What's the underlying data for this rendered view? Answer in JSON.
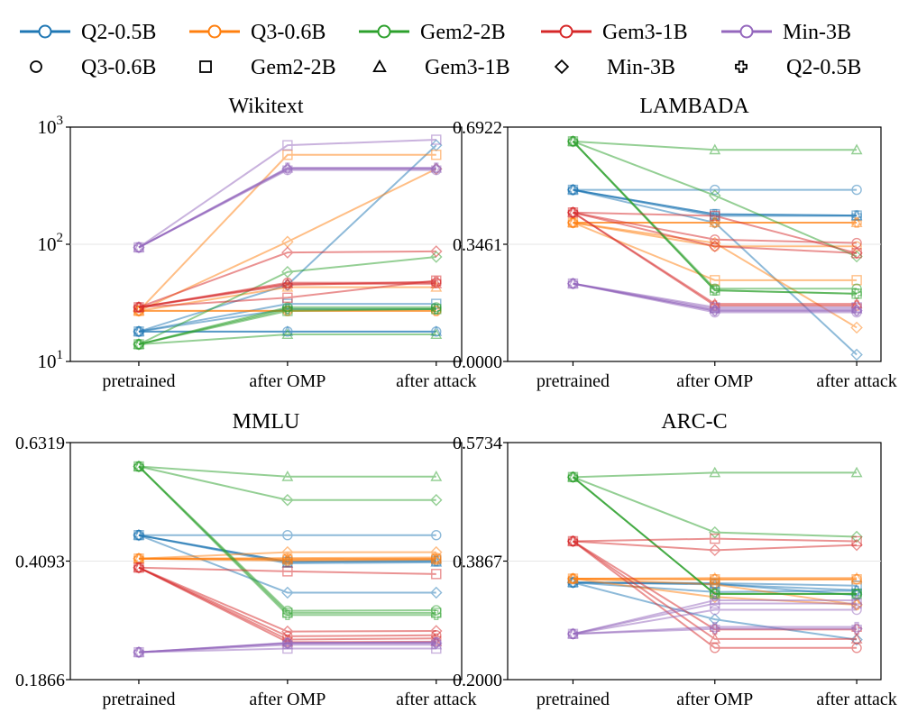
{
  "legend": {
    "models": [
      {
        "label": "Q2-0.5B",
        "color": "#1f77b4",
        "marker": "circle"
      },
      {
        "label": "Q3-0.6B",
        "color": "#ff7f0e",
        "marker": "circle"
      },
      {
        "label": "Gem2-2B",
        "color": "#2ca02c",
        "marker": "circle"
      },
      {
        "label": "Gem3-1B",
        "color": "#d62728",
        "marker": "circle"
      },
      {
        "label": "Min-3B",
        "color": "#9467bd",
        "marker": "circle"
      }
    ],
    "markers": [
      {
        "label": "Q3-0.6B",
        "marker": "circle"
      },
      {
        "label": "Gem2-2B",
        "marker": "square"
      },
      {
        "label": "Gem3-1B",
        "marker": "triangle"
      },
      {
        "label": "Min-3B",
        "marker": "diamond"
      },
      {
        "label": "Q2-0.5B",
        "marker": "plus"
      }
    ]
  },
  "chart_data": [
    {
      "type": "line",
      "title": "Wikitext",
      "categories": [
        "pretrained",
        "after OMP",
        "after attack"
      ],
      "yscale": "log",
      "ylim": [
        10,
        1000
      ],
      "yticks": [
        "10^1",
        "10^2",
        "10^3"
      ],
      "series": [
        {
          "model": "Q2-0.5B",
          "marker": "circle",
          "values": [
            18,
            18,
            18
          ]
        },
        {
          "model": "Q2-0.5B",
          "marker": "square",
          "values": [
            18,
            31,
            31
          ]
        },
        {
          "model": "Q2-0.5B",
          "marker": "triangle",
          "values": [
            18,
            18,
            18
          ]
        },
        {
          "model": "Q2-0.5B",
          "marker": "diamond",
          "values": [
            18,
            45,
            700
          ]
        },
        {
          "model": "Q2-0.5B",
          "marker": "plus",
          "values": [
            18,
            28,
            28
          ]
        },
        {
          "model": "Q3-0.6B",
          "marker": "circle",
          "values": [
            27,
            27,
            27
          ]
        },
        {
          "model": "Q3-0.6B",
          "marker": "square",
          "values": [
            27,
            580,
            580
          ]
        },
        {
          "model": "Q3-0.6B",
          "marker": "triangle",
          "values": [
            27,
            43,
            43
          ]
        },
        {
          "model": "Q3-0.6B",
          "marker": "diamond",
          "values": [
            27,
            105,
            440
          ]
        },
        {
          "model": "Q3-0.6B",
          "marker": "plus",
          "values": [
            27,
            27,
            27
          ]
        },
        {
          "model": "Gem2-2B",
          "marker": "circle",
          "values": [
            14,
            29,
            29
          ]
        },
        {
          "model": "Gem2-2B",
          "marker": "square",
          "values": [
            14,
            27,
            28
          ]
        },
        {
          "model": "Gem2-2B",
          "marker": "triangle",
          "values": [
            14,
            17,
            17
          ]
        },
        {
          "model": "Gem2-2B",
          "marker": "diamond",
          "values": [
            14,
            58,
            78
          ]
        },
        {
          "model": "Gem2-2B",
          "marker": "plus",
          "values": [
            14,
            28,
            28
          ]
        },
        {
          "model": "Gem3-1B",
          "marker": "circle",
          "values": [
            29,
            47,
            47
          ]
        },
        {
          "model": "Gem3-1B",
          "marker": "square",
          "values": [
            29,
            35,
            49
          ]
        },
        {
          "model": "Gem3-1B",
          "marker": "triangle",
          "values": [
            29,
            46,
            46
          ]
        },
        {
          "model": "Gem3-1B",
          "marker": "diamond",
          "values": [
            29,
            85,
            87
          ]
        },
        {
          "model": "Gem3-1B",
          "marker": "plus",
          "values": [
            29,
            45,
            48
          ]
        },
        {
          "model": "Min-3B",
          "marker": "circle",
          "values": [
            94,
            430,
            430
          ]
        },
        {
          "model": "Min-3B",
          "marker": "square",
          "values": [
            94,
            700,
            780
          ]
        },
        {
          "model": "Min-3B",
          "marker": "triangle",
          "values": [
            94,
            445,
            445
          ]
        },
        {
          "model": "Min-3B",
          "marker": "diamond",
          "values": [
            94,
            440,
            440
          ]
        },
        {
          "model": "Min-3B",
          "marker": "plus",
          "values": [
            94,
            450,
            450
          ]
        }
      ]
    },
    {
      "type": "line",
      "title": "LAMBADA",
      "categories": [
        "pretrained",
        "after OMP",
        "after attack"
      ],
      "yscale": "linear",
      "ylim": [
        0.0,
        0.6922
      ],
      "yticks": [
        "0.0000",
        "0.3461",
        "0.6922"
      ],
      "series": [
        {
          "model": "Q2-0.5B",
          "marker": "circle",
          "values": [
            0.507,
            0.507,
            0.507
          ]
        },
        {
          "model": "Q2-0.5B",
          "marker": "square",
          "values": [
            0.507,
            0.435,
            0.431
          ]
        },
        {
          "model": "Q2-0.5B",
          "marker": "triangle",
          "values": [
            0.507,
            0.43,
            0.43
          ]
        },
        {
          "model": "Q2-0.5B",
          "marker": "diamond",
          "values": [
            0.507,
            0.41,
            0.02
          ]
        },
        {
          "model": "Q2-0.5B",
          "marker": "plus",
          "values": [
            0.507,
            0.435,
            0.431
          ]
        },
        {
          "model": "Q3-0.6B",
          "marker": "circle",
          "values": [
            0.41,
            0.34,
            0.34
          ]
        },
        {
          "model": "Q3-0.6B",
          "marker": "square",
          "values": [
            0.41,
            0.24,
            0.24
          ]
        },
        {
          "model": "Q3-0.6B",
          "marker": "triangle",
          "values": [
            0.41,
            0.41,
            0.41
          ]
        },
        {
          "model": "Q3-0.6B",
          "marker": "diamond",
          "values": [
            0.41,
            0.35,
            0.1
          ]
        },
        {
          "model": "Q3-0.6B",
          "marker": "plus",
          "values": [
            0.41,
            0.41,
            0.41
          ]
        },
        {
          "model": "Gem2-2B",
          "marker": "circle",
          "values": [
            0.65,
            0.215,
            0.215
          ]
        },
        {
          "model": "Gem2-2B",
          "marker": "square",
          "values": [
            0.65,
            0.21,
            0.2
          ]
        },
        {
          "model": "Gem2-2B",
          "marker": "triangle",
          "values": [
            0.65,
            0.625,
            0.625
          ]
        },
        {
          "model": "Gem2-2B",
          "marker": "diamond",
          "values": [
            0.65,
            0.49,
            0.31
          ]
        },
        {
          "model": "Gem2-2B",
          "marker": "plus",
          "values": [
            0.65,
            0.21,
            0.2
          ]
        },
        {
          "model": "Gem3-1B",
          "marker": "circle",
          "values": [
            0.44,
            0.36,
            0.35
          ]
        },
        {
          "model": "Gem3-1B",
          "marker": "square",
          "values": [
            0.44,
            0.43,
            0.32
          ]
        },
        {
          "model": "Gem3-1B",
          "marker": "triangle",
          "values": [
            0.44,
            0.17,
            0.17
          ]
        },
        {
          "model": "Gem3-1B",
          "marker": "diamond",
          "values": [
            0.44,
            0.34,
            0.32
          ]
        },
        {
          "model": "Gem3-1B",
          "marker": "plus",
          "values": [
            0.44,
            0.165,
            0.165
          ]
        },
        {
          "model": "Min-3B",
          "marker": "circle",
          "values": [
            0.23,
            0.145,
            0.145
          ]
        },
        {
          "model": "Min-3B",
          "marker": "square",
          "values": [
            0.23,
            0.16,
            0.16
          ]
        },
        {
          "model": "Min-3B",
          "marker": "triangle",
          "values": [
            0.23,
            0.155,
            0.155
          ]
        },
        {
          "model": "Min-3B",
          "marker": "diamond",
          "values": [
            0.23,
            0.15,
            0.15
          ]
        },
        {
          "model": "Min-3B",
          "marker": "plus",
          "values": [
            0.23,
            0.15,
            0.15
          ]
        }
      ]
    },
    {
      "type": "line",
      "title": "MMLU",
      "categories": [
        "pretrained",
        "after OMP",
        "after attack"
      ],
      "yscale": "linear",
      "ylim": [
        0.1866,
        0.6319
      ],
      "yticks": [
        "0.1866",
        "0.4093",
        "0.6319"
      ],
      "series": [
        {
          "model": "Q2-0.5B",
          "marker": "circle",
          "values": [
            0.458,
            0.458,
            0.458
          ]
        },
        {
          "model": "Q2-0.5B",
          "marker": "square",
          "values": [
            0.458,
            0.408,
            0.41
          ]
        },
        {
          "model": "Q2-0.5B",
          "marker": "triangle",
          "values": [
            0.458,
            0.405,
            0.407
          ]
        },
        {
          "model": "Q2-0.5B",
          "marker": "diamond",
          "values": [
            0.458,
            0.35,
            0.35
          ]
        },
        {
          "model": "Q2-0.5B",
          "marker": "plus",
          "values": [
            0.458,
            0.408,
            0.409
          ]
        },
        {
          "model": "Q3-0.6B",
          "marker": "circle",
          "values": [
            0.414,
            0.415,
            0.416
          ]
        },
        {
          "model": "Q3-0.6B",
          "marker": "square",
          "values": [
            0.414,
            0.412,
            0.413
          ]
        },
        {
          "model": "Q3-0.6B",
          "marker": "triangle",
          "values": [
            0.414,
            0.413,
            0.414
          ]
        },
        {
          "model": "Q3-0.6B",
          "marker": "diamond",
          "values": [
            0.414,
            0.426,
            0.426
          ]
        },
        {
          "model": "Q3-0.6B",
          "marker": "plus",
          "values": [
            0.414,
            0.41,
            0.412
          ]
        },
        {
          "model": "Gem2-2B",
          "marker": "circle",
          "values": [
            0.587,
            0.316,
            0.317
          ]
        },
        {
          "model": "Gem2-2B",
          "marker": "square",
          "values": [
            0.587,
            0.312,
            0.312
          ]
        },
        {
          "model": "Gem2-2B",
          "marker": "triangle",
          "values": [
            0.587,
            0.568,
            0.568
          ]
        },
        {
          "model": "Gem2-2B",
          "marker": "diamond",
          "values": [
            0.587,
            0.524,
            0.524
          ]
        },
        {
          "model": "Gem2-2B",
          "marker": "plus",
          "values": [
            0.587,
            0.308,
            0.308
          ]
        },
        {
          "model": "Gem3-1B",
          "marker": "circle",
          "values": [
            0.397,
            0.268,
            0.27
          ]
        },
        {
          "model": "Gem3-1B",
          "marker": "square",
          "values": [
            0.397,
            0.39,
            0.385
          ]
        },
        {
          "model": "Gem3-1B",
          "marker": "triangle",
          "values": [
            0.397,
            0.257,
            0.258
          ]
        },
        {
          "model": "Gem3-1B",
          "marker": "diamond",
          "values": [
            0.397,
            0.277,
            0.278
          ]
        },
        {
          "model": "Gem3-1B",
          "marker": "plus",
          "values": [
            0.397,
            0.262,
            0.264
          ]
        },
        {
          "model": "Min-3B",
          "marker": "circle",
          "values": [
            0.238,
            0.255,
            0.257
          ]
        },
        {
          "model": "Min-3B",
          "marker": "square",
          "values": [
            0.238,
            0.245,
            0.245
          ]
        },
        {
          "model": "Min-3B",
          "marker": "triangle",
          "values": [
            0.238,
            0.252,
            0.252
          ]
        },
        {
          "model": "Min-3B",
          "marker": "diamond",
          "values": [
            0.238,
            0.255,
            0.255
          ]
        },
        {
          "model": "Min-3B",
          "marker": "plus",
          "values": [
            0.238,
            0.256,
            0.256
          ]
        }
      ]
    },
    {
      "type": "line",
      "title": "ARC-C",
      "categories": [
        "pretrained",
        "after OMP",
        "after attack"
      ],
      "yscale": "linear",
      "ylim": [
        0.2,
        0.5734
      ],
      "yticks": [
        "0.2000",
        "0.3867",
        "0.5734"
      ],
      "series": [
        {
          "model": "Q2-0.5B",
          "marker": "circle",
          "values": [
            0.353,
            0.351,
            0.333
          ]
        },
        {
          "model": "Q2-0.5B",
          "marker": "square",
          "values": [
            0.353,
            0.352,
            0.348
          ]
        },
        {
          "model": "Q2-0.5B",
          "marker": "triangle",
          "values": [
            0.353,
            0.35,
            0.341
          ]
        },
        {
          "model": "Q2-0.5B",
          "marker": "diamond",
          "values": [
            0.353,
            0.295,
            0.263
          ]
        },
        {
          "model": "Q2-0.5B",
          "marker": "plus",
          "values": [
            0.353,
            0.338,
            0.34
          ]
        },
        {
          "model": "Q3-0.6B",
          "marker": "circle",
          "values": [
            0.359,
            0.358,
            0.358
          ]
        },
        {
          "model": "Q3-0.6B",
          "marker": "square",
          "values": [
            0.359,
            0.358,
            0.358
          ]
        },
        {
          "model": "Q3-0.6B",
          "marker": "triangle",
          "values": [
            0.359,
            0.36,
            0.36
          ]
        },
        {
          "model": "Q3-0.6B",
          "marker": "diamond",
          "values": [
            0.359,
            0.33,
            0.318
          ]
        },
        {
          "model": "Q3-0.6B",
          "marker": "plus",
          "values": [
            0.359,
            0.35,
            0.318
          ]
        },
        {
          "model": "Gem2-2B",
          "marker": "circle",
          "values": [
            0.519,
            0.335,
            0.335
          ]
        },
        {
          "model": "Gem2-2B",
          "marker": "square",
          "values": [
            0.519,
            0.335,
            0.335
          ]
        },
        {
          "model": "Gem2-2B",
          "marker": "triangle",
          "values": [
            0.519,
            0.526,
            0.526
          ]
        },
        {
          "model": "Gem2-2B",
          "marker": "diamond",
          "values": [
            0.519,
            0.432,
            0.425
          ]
        },
        {
          "model": "Gem2-2B",
          "marker": "plus",
          "values": [
            0.519,
            0.335,
            0.335
          ]
        },
        {
          "model": "Gem3-1B",
          "marker": "circle",
          "values": [
            0.418,
            0.25,
            0.25
          ]
        },
        {
          "model": "Gem3-1B",
          "marker": "square",
          "values": [
            0.418,
            0.422,
            0.418
          ]
        },
        {
          "model": "Gem3-1B",
          "marker": "triangle",
          "values": [
            0.418,
            0.264,
            0.264
          ]
        },
        {
          "model": "Gem3-1B",
          "marker": "diamond",
          "values": [
            0.418,
            0.404,
            0.412
          ]
        },
        {
          "model": "Gem3-1B",
          "marker": "plus",
          "values": [
            0.418,
            0.279,
            0.279
          ]
        },
        {
          "model": "Min-3B",
          "marker": "circle",
          "values": [
            0.272,
            0.31,
            0.31
          ]
        },
        {
          "model": "Min-3B",
          "marker": "square",
          "values": [
            0.272,
            0.32,
            0.32
          ]
        },
        {
          "model": "Min-3B",
          "marker": "triangle",
          "values": [
            0.272,
            0.325,
            0.325
          ]
        },
        {
          "model": "Min-3B",
          "marker": "diamond",
          "values": [
            0.272,
            0.28,
            0.28
          ]
        },
        {
          "model": "Min-3B",
          "marker": "plus",
          "values": [
            0.272,
            0.283,
            0.283
          ]
        }
      ]
    }
  ]
}
